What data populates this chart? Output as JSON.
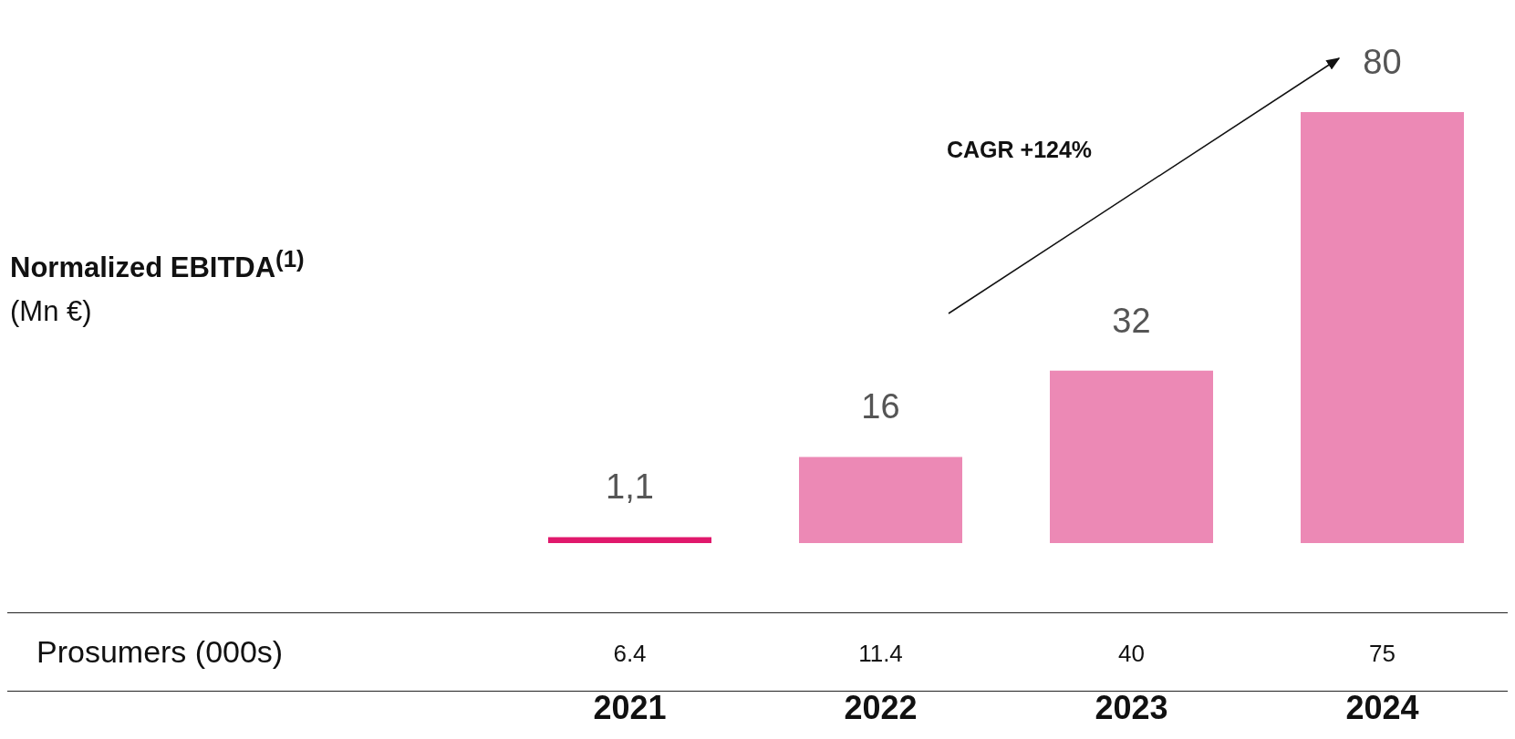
{
  "chart_data": {
    "type": "bar",
    "title": "Normalized EBITDA$^{(1)}$",
    "subtitle": "(Mn €)",
    "categories": [
      "2021",
      "2022",
      "2023",
      "2024"
    ],
    "values": [
      1.1,
      16,
      32,
      80
    ],
    "colors": [
      "#e0186c",
      "#ec89b5",
      "#ec89b5",
      "#ec89b5"
    ],
    "value_labels": [
      "1,1",
      "16",
      "32",
      "80"
    ],
    "annotations": [
      "CAGR +124%",
      "Prosumers (000s)",
      "6.4",
      "11.4",
      "40",
      "75"
    ]
  }
}
